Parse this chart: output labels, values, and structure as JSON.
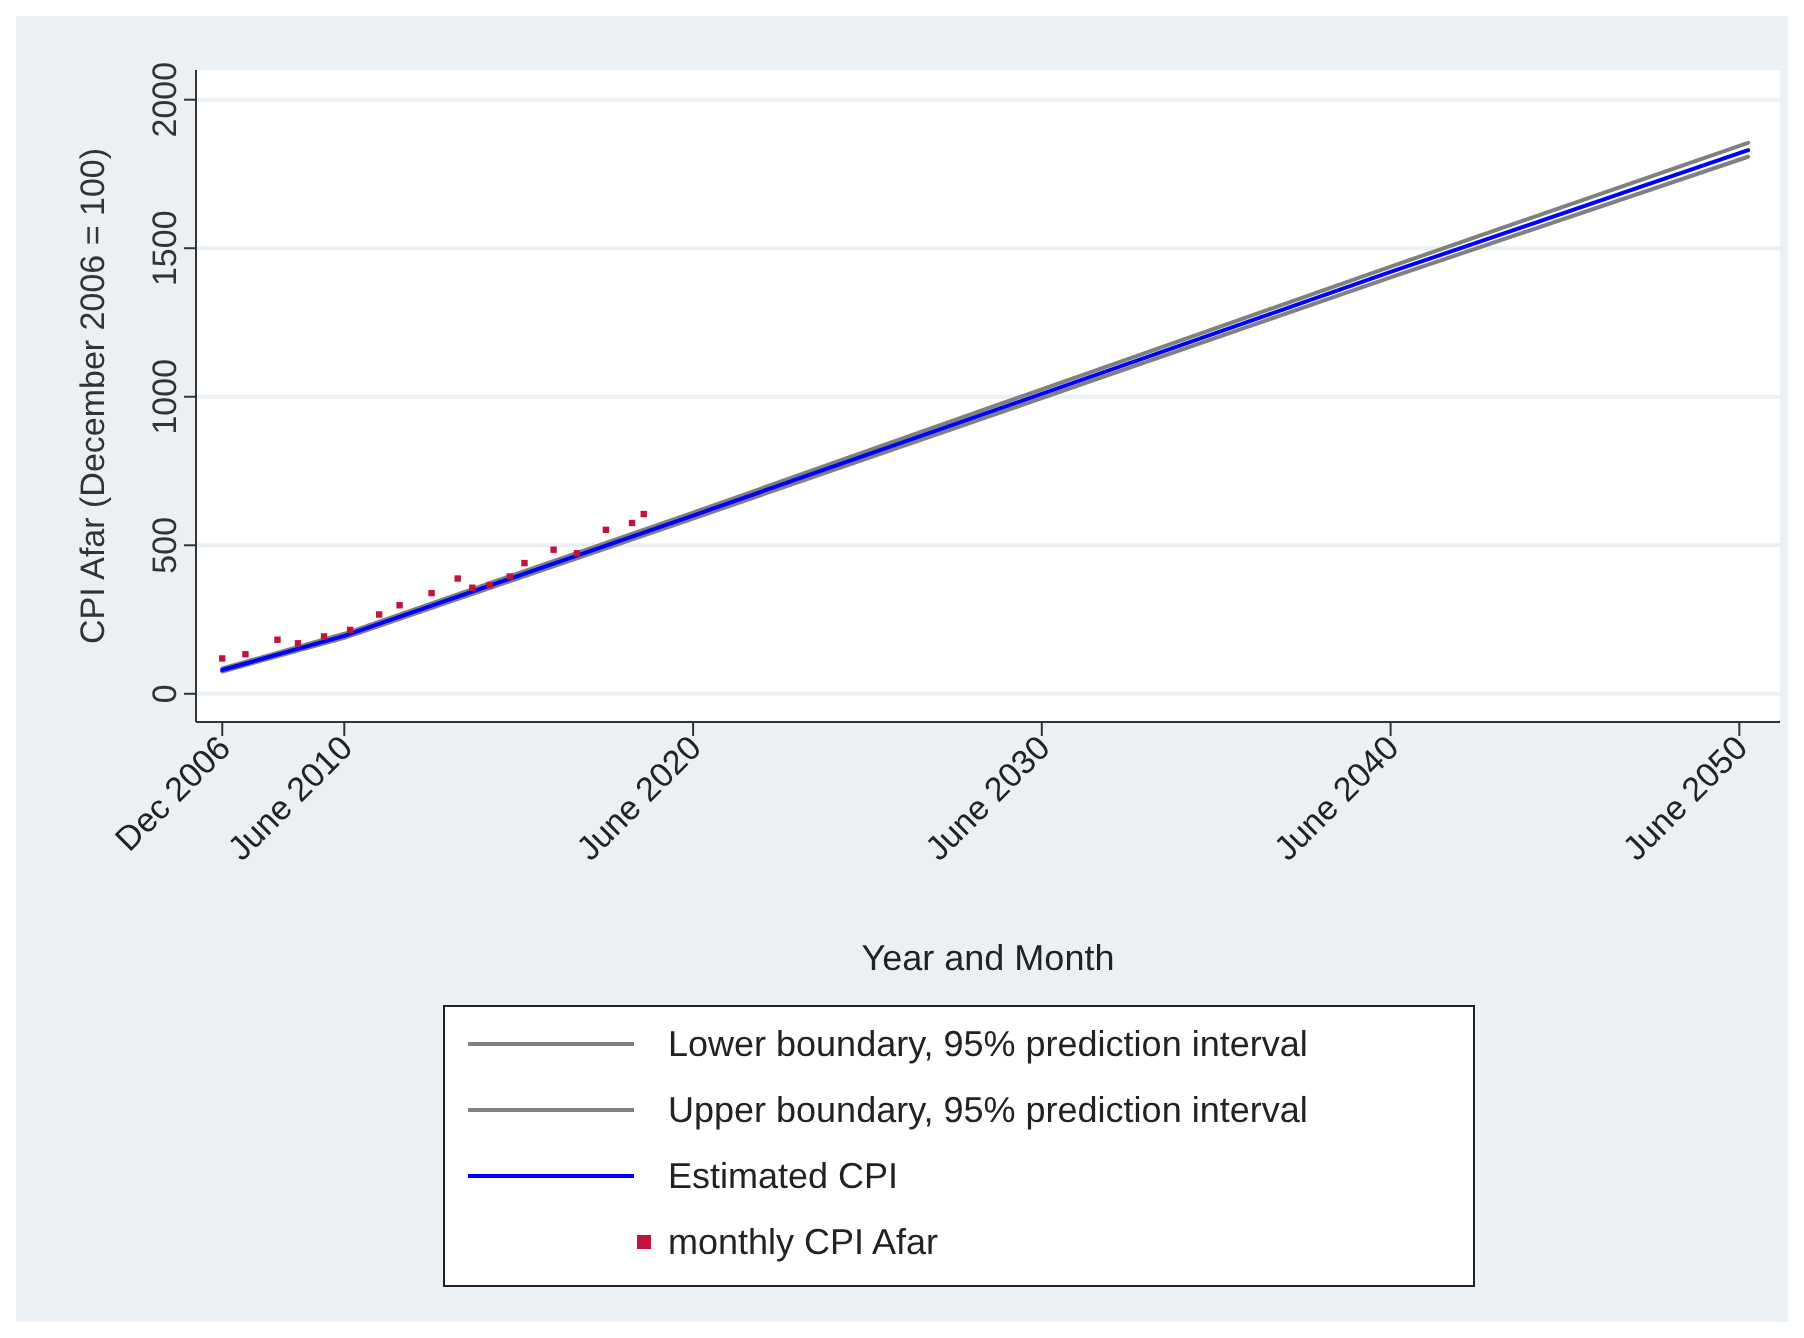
{
  "chart_data": {
    "type": "line",
    "xlabel": "Year and Month",
    "ylabel": "CPI Afar (December 2006 = 100)",
    "xlim": [
      "2006-03",
      "2051-08"
    ],
    "ylim": [
      -95,
      2100
    ],
    "xticks": [
      {
        "value": "2006-12",
        "label": "Dec 2006"
      },
      {
        "value": "2010-06",
        "label": "June 2010"
      },
      {
        "value": "2020-06",
        "label": "June 2020"
      },
      {
        "value": "2030-06",
        "label": "June 2030"
      },
      {
        "value": "2040-06",
        "label": "June 2040"
      },
      {
        "value": "2050-06",
        "label": "June 2050"
      }
    ],
    "yticks": [
      0,
      500,
      1000,
      1500,
      2000
    ],
    "grid": "y",
    "legend": "bottom",
    "line_style": "solid",
    "series": [
      {
        "name": "Lower boundary, 95% prediction interval",
        "color": "#808080",
        "x": [
          "2006-12",
          "2010-06",
          "2020-06",
          "2030-06",
          "2040-06",
          "2050-09"
        ],
        "values": [
          75,
          188,
          590,
          995,
          1402,
          1808
        ]
      },
      {
        "name": "Upper boundary, 95% prediction interval",
        "color": "#808080",
        "x": [
          "2006-12",
          "2010-06",
          "2020-06",
          "2030-06",
          "2040-06",
          "2050-09"
        ],
        "values": [
          85,
          202,
          610,
          1025,
          1438,
          1855
        ]
      },
      {
        "name": "Estimated CPI",
        "color": "#0000ff",
        "x": [
          "2006-12",
          "2010-06",
          "2020-06",
          "2030-06",
          "2040-06",
          "2050-09"
        ],
        "values": [
          80,
          195,
          600,
          1010,
          1420,
          1830
        ]
      },
      {
        "name": "monthly CPI Afar",
        "type": "scatter",
        "marker": "square",
        "color": "#c0143c",
        "x": [
          "2006-12",
          "2007-08",
          "2008-07",
          "2009-02",
          "2009-11",
          "2010-08",
          "2011-06",
          "2012-01",
          "2012-12",
          "2013-09",
          "2014-02",
          "2014-08",
          "2015-03",
          "2015-08",
          "2016-06",
          "2017-02",
          "2017-12",
          "2018-09",
          "2019-01"
        ],
        "values": [
          119,
          133,
          182,
          170,
          193,
          215,
          267,
          298,
          339,
          388,
          357,
          366,
          395,
          440,
          485,
          473,
          552,
          575,
          605
        ]
      }
    ]
  }
}
